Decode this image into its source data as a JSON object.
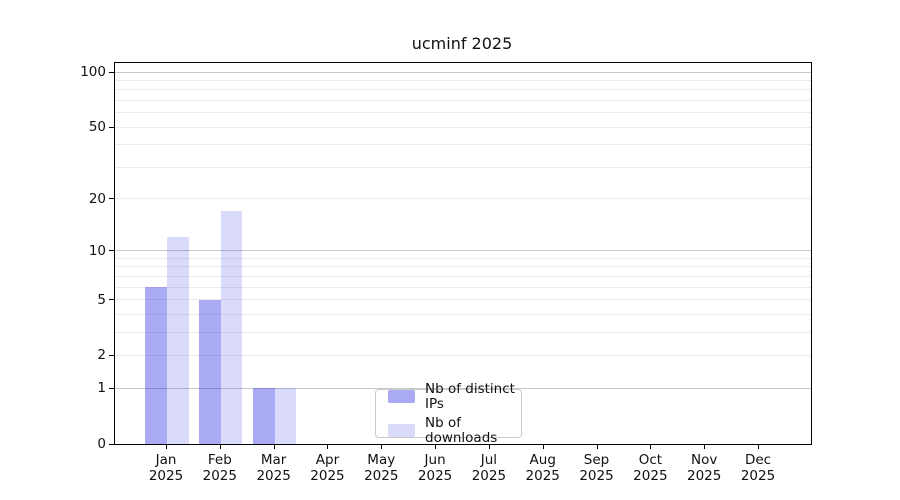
{
  "chart_data": {
    "type": "bar",
    "title": "ucminf 2025",
    "categories": [
      "Jan",
      "Feb",
      "Mar",
      "Apr",
      "May",
      "Jun",
      "Jul",
      "Aug",
      "Sep",
      "Oct",
      "Nov",
      "Dec"
    ],
    "year_label": "2025",
    "series": [
      {
        "name": "Nb of distinct IPs",
        "color": "rgba(35,35,230,0.38)",
        "values": [
          6,
          5,
          1,
          0,
          0,
          0,
          0,
          0,
          0,
          0,
          0,
          0
        ]
      },
      {
        "name": "Nb of downloads",
        "color": "rgba(35,35,230,0.17)",
        "values": [
          12,
          17,
          1,
          0,
          0,
          0,
          0,
          0,
          0,
          0,
          0,
          0
        ]
      }
    ],
    "y_scale": "log1p",
    "ylim": [
      0,
      112
    ],
    "y_ticks": [
      0,
      1,
      2,
      5,
      10,
      20,
      50,
      100
    ],
    "major_gridlines": [
      1,
      10,
      100
    ],
    "minor_gridlines": [
      2,
      3,
      4,
      5,
      6,
      7,
      8,
      9,
      20,
      30,
      40,
      50,
      60,
      70,
      80,
      90
    ],
    "grid": true,
    "legend_position": "lower center",
    "colors": {
      "major_grid": "#c8c8c8",
      "minor_grid": "#ececec",
      "spine": "#000000",
      "text": "#111111"
    }
  }
}
